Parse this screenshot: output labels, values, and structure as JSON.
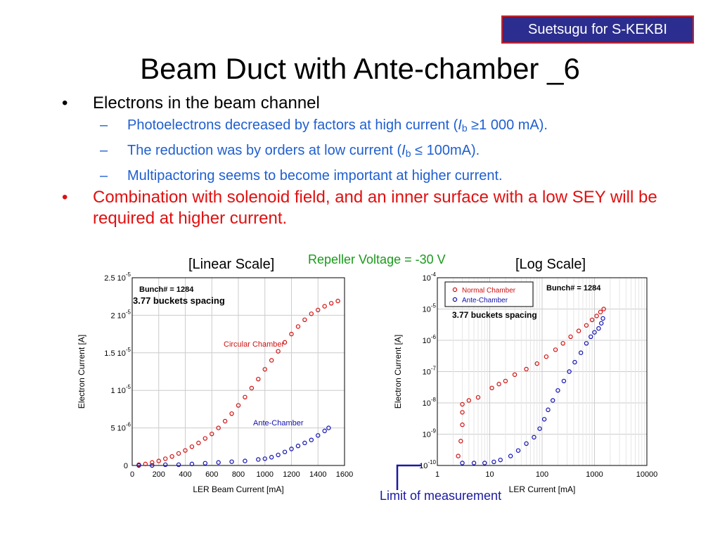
{
  "badge": "Suetsugu for S-KEKBI",
  "title": "Beam Duct with Ante-chamber _6",
  "bullet1": "Electrons in the beam channel",
  "sub1": {
    "pre": "Photoelectrons decreased by factors at high current (",
    "i": "I",
    "b": "b",
    "post": " ≥1 000 mA)."
  },
  "sub2": {
    "pre": "The reduction was by orders at low current (",
    "i": "I",
    "b": "b",
    "post": " ≤ 100mA)."
  },
  "sub3": "Multipactoring seems to become important at higher current.",
  "bullet2": "Combination with solenoid field, and an inner surface with a low SEY will be required at higher current.",
  "label_linear": "[Linear Scale]",
  "label_log": "[Log Scale]",
  "label_repeller": "Repeller Voltage = -30 V",
  "label_limit": "Limit of measurement",
  "colors": {
    "red_series": "#d01010",
    "blue_series": "#1010b0",
    "badge_bg": "#2b2d8f",
    "bullet_blue": "#1f5fd0"
  },
  "chart_data": [
    {
      "type": "scatter",
      "xscale": "linear",
      "yscale": "linear",
      "xlabel": "LER Beam Current [mA]",
      "ylabel": "Electron Current [A]",
      "xlim": [
        0,
        1600
      ],
      "ylim": [
        0,
        2.5e-05
      ],
      "xticks": [
        "0",
        "200",
        "400",
        "600",
        "800",
        "1000",
        "1200",
        "1400",
        "1600"
      ],
      "yticks": [
        {
          "base": "0",
          "exp": ""
        },
        {
          "base": "5 10",
          "exp": "-6"
        },
        {
          "base": "1 10",
          "exp": "-5"
        },
        {
          "base": "1.5 10",
          "exp": "-5"
        },
        {
          "base": "2 10",
          "exp": "-5"
        },
        {
          "base": "2.5 10",
          "exp": "-5"
        }
      ],
      "annotations": [
        "Bunch# = 1284",
        "3.77 buckets spacing"
      ],
      "series": [
        {
          "name": "Circular Chamber",
          "color": "#d01010",
          "points": [
            [
              50,
              1e-07
            ],
            [
              100,
              2e-07
            ],
            [
              150,
              4e-07
            ],
            [
              200,
              6e-07
            ],
            [
              250,
              9e-07
            ],
            [
              300,
              1.2e-06
            ],
            [
              350,
              1.6e-06
            ],
            [
              400,
              2e-06
            ],
            [
              450,
              2.5e-06
            ],
            [
              500,
              3e-06
            ],
            [
              550,
              3.6e-06
            ],
            [
              600,
              4.2e-06
            ],
            [
              650,
              5e-06
            ],
            [
              700,
              5.9e-06
            ],
            [
              750,
              6.9e-06
            ],
            [
              800,
              8e-06
            ],
            [
              850,
              9.1e-06
            ],
            [
              900,
              1.03e-05
            ],
            [
              950,
              1.15e-05
            ],
            [
              1000,
              1.28e-05
            ],
            [
              1050,
              1.4e-05
            ],
            [
              1100,
              1.52e-05
            ],
            [
              1150,
              1.64e-05
            ],
            [
              1200,
              1.75e-05
            ],
            [
              1250,
              1.85e-05
            ],
            [
              1300,
              1.94e-05
            ],
            [
              1350,
              2.02e-05
            ],
            [
              1400,
              2.07e-05
            ],
            [
              1450,
              2.12e-05
            ],
            [
              1500,
              2.16e-05
            ],
            [
              1550,
              2.19e-05
            ]
          ]
        },
        {
          "name": "Ante-Chamber",
          "color": "#1010b0",
          "points": [
            [
              50,
              0
            ],
            [
              150,
              0
            ],
            [
              250,
              1e-07
            ],
            [
              350,
              1e-07
            ],
            [
              450,
              2e-07
            ],
            [
              550,
              3e-07
            ],
            [
              650,
              4e-07
            ],
            [
              750,
              5e-07
            ],
            [
              850,
              6e-07
            ],
            [
              950,
              8e-07
            ],
            [
              1000,
              9e-07
            ],
            [
              1050,
              1.1e-06
            ],
            [
              1100,
              1.4e-06
            ],
            [
              1150,
              1.8e-06
            ],
            [
              1200,
              2.2e-06
            ],
            [
              1250,
              2.6e-06
            ],
            [
              1300,
              3e-06
            ],
            [
              1350,
              3.4e-06
            ],
            [
              1400,
              4e-06
            ],
            [
              1450,
              4.6e-06
            ],
            [
              1480,
              5e-06
            ]
          ]
        }
      ]
    },
    {
      "type": "scatter",
      "xscale": "log",
      "yscale": "log",
      "xlabel": "LER Current [mA]",
      "ylabel": "Electron Current [A]",
      "xlim": [
        1,
        10000
      ],
      "ylim": [
        1e-10,
        0.0001
      ],
      "xticks": [
        "1",
        "10",
        "100",
        "1000",
        "10000"
      ],
      "yticks": [
        {
          "base": "10",
          "exp": "-10"
        },
        {
          "base": "10",
          "exp": "-9"
        },
        {
          "base": "10",
          "exp": "-8"
        },
        {
          "base": "10",
          "exp": "-7"
        },
        {
          "base": "10",
          "exp": "-6"
        },
        {
          "base": "10",
          "exp": "-5"
        },
        {
          "base": "10",
          "exp": "-4"
        }
      ],
      "annotations": [
        "Bunch# = 1284",
        "3.77 buckets spacing"
      ],
      "series": [
        {
          "name": "Normal Chamber",
          "color": "#d01010",
          "points": [
            [
              2.5,
              2e-10
            ],
            [
              2.8,
              6e-10
            ],
            [
              3,
              2e-09
            ],
            [
              3,
              5e-09
            ],
            [
              3,
              9e-09
            ],
            [
              4,
              1.2e-08
            ],
            [
              6,
              1.5e-08
            ],
            [
              11,
              3e-08
            ],
            [
              15,
              4e-08
            ],
            [
              20,
              5e-08
            ],
            [
              30,
              8e-08
            ],
            [
              50,
              1.2e-07
            ],
            [
              80,
              1.8e-07
            ],
            [
              120,
              3e-07
            ],
            [
              180,
              5e-07
            ],
            [
              250,
              8e-07
            ],
            [
              350,
              1.3e-06
            ],
            [
              500,
              2e-06
            ],
            [
              700,
              3e-06
            ],
            [
              900,
              4.5e-06
            ],
            [
              1100,
              6e-06
            ],
            [
              1300,
              8e-06
            ],
            [
              1500,
              1e-05
            ]
          ]
        },
        {
          "name": "Ante-Chamber",
          "color": "#1010b0",
          "points": [
            [
              3,
              1.2e-10
            ],
            [
              5,
              1.2e-10
            ],
            [
              8,
              1.2e-10
            ],
            [
              12,
              1.3e-10
            ],
            [
              16,
              1.5e-10
            ],
            [
              25,
              2e-10
            ],
            [
              35,
              3e-10
            ],
            [
              50,
              5e-10
            ],
            [
              70,
              8e-10
            ],
            [
              90,
              1.5e-09
            ],
            [
              110,
              3e-09
            ],
            [
              130,
              6e-09
            ],
            [
              160,
              1.2e-08
            ],
            [
              200,
              2.5e-08
            ],
            [
              260,
              5e-08
            ],
            [
              330,
              1e-07
            ],
            [
              420,
              2e-07
            ],
            [
              550,
              4e-07
            ],
            [
              700,
              8e-07
            ],
            [
              850,
              1.3e-06
            ],
            [
              1000,
              1.8e-06
            ],
            [
              1200,
              2.4e-06
            ],
            [
              1350,
              3.5e-06
            ],
            [
              1450,
              5e-06
            ]
          ]
        }
      ]
    }
  ]
}
